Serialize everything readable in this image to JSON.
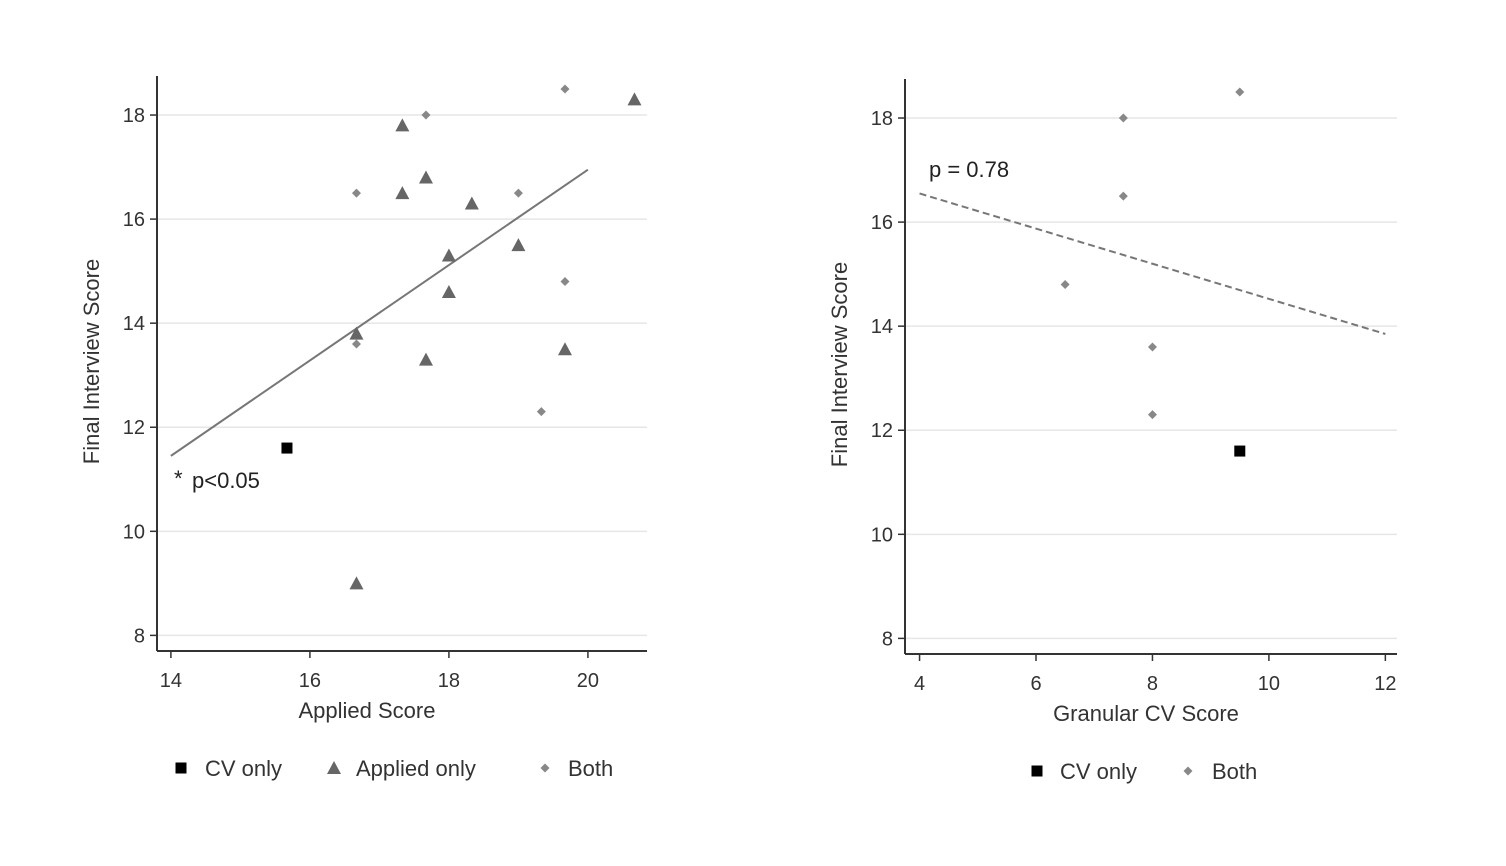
{
  "colors": {
    "cv_only": "#000000",
    "applied_only": "#666666",
    "both": "#888888",
    "axis": "#333333",
    "grid": "#e6e6e6",
    "fit": "#777777"
  },
  "chart_data": [
    {
      "type": "scatter",
      "xlabel": "Applied Score",
      "ylabel": "Final Interview Score",
      "xlim": [
        13.8,
        20.85
      ],
      "ylim": [
        7.7,
        18.75
      ],
      "xticks": [
        14,
        16,
        18,
        20
      ],
      "yticks": [
        8,
        10,
        12,
        14,
        16,
        18
      ],
      "grid": "horizontal",
      "legend_position": "bottom",
      "annotation": "p<0.05",
      "fit_line": {
        "style": "solid",
        "x": [
          14,
          20
        ],
        "y": [
          11.45,
          16.95
        ]
      },
      "series": [
        {
          "name": "CV only",
          "marker": "square",
          "x": [
            15.67
          ],
          "y": [
            11.6
          ]
        },
        {
          "name": "Applied only",
          "marker": "triangle",
          "x": [
            16.67,
            17.33,
            17.33,
            17.67,
            17.67,
            18.0,
            18.0,
            18.33,
            19.0,
            19.67,
            20.67,
            16.67
          ],
          "y": [
            13.8,
            17.8,
            16.5,
            16.8,
            13.3,
            15.3,
            14.6,
            16.3,
            15.5,
            13.5,
            18.3,
            9.0
          ]
        },
        {
          "name": "Both",
          "marker": "diamond",
          "x": [
            16.67,
            16.67,
            17.67,
            19.0,
            19.33,
            19.67,
            19.67
          ],
          "y": [
            16.5,
            13.6,
            18.0,
            16.5,
            12.3,
            18.5,
            14.8
          ]
        }
      ]
    },
    {
      "type": "scatter",
      "xlabel": "Granular CV Score",
      "ylabel": "Final Interview Score",
      "xlim": [
        3.75,
        12.2
      ],
      "ylim": [
        7.7,
        18.75
      ],
      "xticks": [
        4,
        6,
        8,
        10,
        12
      ],
      "yticks": [
        8,
        10,
        12,
        14,
        16,
        18
      ],
      "grid": "horizontal",
      "legend_position": "bottom",
      "annotation": "p = 0.78",
      "fit_line": {
        "style": "dashed",
        "x": [
          4,
          12
        ],
        "y": [
          16.55,
          13.85
        ]
      },
      "series": [
        {
          "name": "CV only",
          "marker": "square",
          "x": [
            9.5
          ],
          "y": [
            11.6
          ]
        },
        {
          "name": "Both",
          "marker": "diamond",
          "x": [
            6.5,
            7.5,
            7.5,
            8.0,
            8.0,
            9.5
          ],
          "y": [
            14.8,
            18.0,
            16.5,
            13.6,
            12.3,
            18.5
          ]
        }
      ]
    }
  ]
}
